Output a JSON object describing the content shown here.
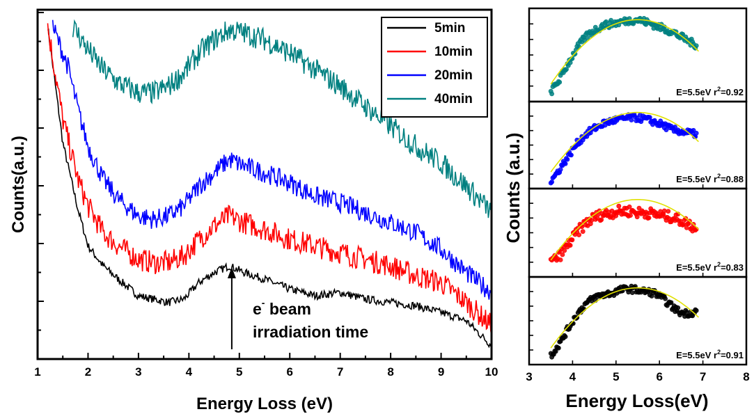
{
  "chart_data": [
    {
      "type": "line",
      "xlabel": "Energy Loss (eV)",
      "ylabel": "Counts(a.u.)",
      "xlim": [
        1,
        10
      ],
      "x_ticks": [
        "1",
        "2",
        "3",
        "4",
        "5",
        "6",
        "7",
        "8",
        "9",
        "10"
      ],
      "y_ticks_labeled": false,
      "legend": {
        "position": "top-right",
        "entries": [
          {
            "label": "5min",
            "color": "#000000"
          },
          {
            "label": "10min",
            "color": "#ff0000"
          },
          {
            "label": "20min",
            "color": "#0000ff"
          },
          {
            "label": "40min",
            "color": "#008080"
          }
        ]
      },
      "series": [
        {
          "name": "5min",
          "color": "#000000",
          "x": [
            1.2,
            1.5,
            1.8,
            2.0,
            2.3,
            2.6,
            3.0,
            3.3,
            3.6,
            3.9,
            4.2,
            4.5,
            4.8,
            5.1,
            5.5,
            6.0,
            6.5,
            7.0,
            7.5,
            8.0,
            8.5,
            9.0,
            9.5,
            10.0
          ],
          "y": [
            10.0,
            6.5,
            4.5,
            3.4,
            2.8,
            2.4,
            1.9,
            1.8,
            1.7,
            1.8,
            2.3,
            2.6,
            2.8,
            2.6,
            2.4,
            2.1,
            1.9,
            2.0,
            1.8,
            1.7,
            1.6,
            1.4,
            1.15,
            0.4
          ]
        },
        {
          "name": "10min",
          "color": "#ff0000",
          "x": [
            1.2,
            1.5,
            1.8,
            2.0,
            2.3,
            2.6,
            3.0,
            3.3,
            3.6,
            3.9,
            4.2,
            4.5,
            4.8,
            5.1,
            5.5,
            6.0,
            6.5,
            7.0,
            7.5,
            8.0,
            8.5,
            9.0,
            9.5,
            10.0
          ],
          "y": [
            10.0,
            7.2,
            5.4,
            4.6,
            3.8,
            3.4,
            3.0,
            2.9,
            2.9,
            3.1,
            3.6,
            4.0,
            4.3,
            4.1,
            3.9,
            3.6,
            3.4,
            3.2,
            3.0,
            2.8,
            2.5,
            2.3,
            1.7,
            1.0
          ]
        },
        {
          "name": "20min",
          "color": "#0000ff",
          "x": [
            1.3,
            1.6,
            1.8,
            2.0,
            2.3,
            2.6,
            3.0,
            3.3,
            3.6,
            3.9,
            4.2,
            4.5,
            4.8,
            5.1,
            5.5,
            6.0,
            6.5,
            7.0,
            7.5,
            8.0,
            8.5,
            9.0,
            9.5,
            10.0
          ],
          "y": [
            10.0,
            8.8,
            7.5,
            6.4,
            5.4,
            4.8,
            4.3,
            4.2,
            4.3,
            4.6,
            5.2,
            5.6,
            6.0,
            5.8,
            5.6,
            5.3,
            4.9,
            4.7,
            4.4,
            4.1,
            3.8,
            3.3,
            2.6,
            2.0
          ]
        },
        {
          "name": "40min",
          "color": "#008080",
          "x": [
            1.7,
            2.0,
            2.3,
            2.6,
            3.0,
            3.3,
            3.6,
            3.9,
            4.2,
            4.5,
            4.8,
            5.1,
            5.5,
            6.0,
            6.5,
            7.0,
            7.5,
            8.0,
            8.5,
            9.0,
            9.5,
            10.0
          ],
          "y": [
            10.0,
            9.3,
            8.7,
            8.3,
            8.0,
            8.0,
            8.2,
            8.6,
            9.2,
            9.6,
            9.9,
            9.8,
            9.6,
            9.2,
            8.7,
            8.2,
            7.6,
            7.0,
            6.4,
            5.9,
            5.2,
            4.4
          ]
        }
      ],
      "annotation": {
        "text_line1": "e",
        "text_sup": "-",
        "text_line1_rest": " beam",
        "text_line2": "irradiation time",
        "arrow_x": 4.85,
        "arrow_direction": "up"
      }
    },
    {
      "type": "scatter",
      "layout": "4 stacked panels, shared x axis",
      "xlabel": "Energy Loss(eV)",
      "ylabel": "Counts (a.u.)",
      "xlim": [
        3,
        8
      ],
      "x_ticks": [
        "3",
        "4",
        "5",
        "6",
        "7",
        "8"
      ],
      "y_ticks_labeled": false,
      "fit_color": "#e0e000",
      "panels": [
        {
          "color": "#008080",
          "fit_label": "E=5.5eV r",
          "fit_sup": "2",
          "fit_label_rest": "=0.92",
          "x": [
            3.5,
            3.7,
            3.9,
            4.1,
            4.3,
            4.5,
            4.7,
            4.9,
            5.1,
            5.3,
            5.5,
            5.7,
            5.9,
            6.1,
            6.3,
            6.5,
            6.7,
            6.85
          ],
          "y": [
            0.05,
            0.2,
            0.4,
            0.58,
            0.72,
            0.8,
            0.86,
            0.88,
            0.9,
            0.92,
            0.93,
            0.9,
            0.86,
            0.82,
            0.78,
            0.72,
            0.66,
            0.62
          ]
        },
        {
          "color": "#0000ff",
          "fit_label": "E=5.5eV r",
          "fit_sup": "2",
          "fit_label_rest": "=0.88",
          "x": [
            3.5,
            3.7,
            3.9,
            4.1,
            4.3,
            4.5,
            4.7,
            4.9,
            5.1,
            5.3,
            5.5,
            5.7,
            5.9,
            6.1,
            6.3,
            6.5,
            6.7,
            6.85
          ],
          "y": [
            0.02,
            0.18,
            0.35,
            0.52,
            0.64,
            0.72,
            0.78,
            0.82,
            0.84,
            0.86,
            0.86,
            0.84,
            0.8,
            0.76,
            0.7,
            0.68,
            0.66,
            0.64
          ]
        },
        {
          "color": "#ff0000",
          "fit_label": "E=5.5eV r",
          "fit_sup": "2",
          "fit_label_rest": "=0.83",
          "x": [
            3.5,
            3.7,
            3.9,
            4.1,
            4.3,
            4.5,
            4.7,
            4.9,
            5.1,
            5.3,
            5.5,
            5.7,
            5.9,
            6.1,
            6.3,
            6.5,
            6.7,
            6.85
          ],
          "y": [
            0.12,
            0.2,
            0.35,
            0.5,
            0.62,
            0.7,
            0.74,
            0.76,
            0.78,
            0.78,
            0.76,
            0.76,
            0.74,
            0.72,
            0.7,
            0.66,
            0.6,
            0.56
          ]
        },
        {
          "color": "#000000",
          "fit_label": "E=5.5eV r",
          "fit_sup": "2",
          "fit_label_rest": "=0.91",
          "x": [
            3.5,
            3.7,
            3.9,
            4.1,
            4.3,
            4.5,
            4.7,
            4.9,
            5.1,
            5.3,
            5.5,
            5.7,
            5.9,
            6.1,
            6.3,
            6.5,
            6.7,
            6.85
          ],
          "y": [
            0.05,
            0.2,
            0.4,
            0.58,
            0.72,
            0.8,
            0.84,
            0.86,
            0.9,
            0.92,
            0.9,
            0.88,
            0.86,
            0.78,
            0.68,
            0.6,
            0.6,
            0.62
          ]
        }
      ]
    }
  ]
}
